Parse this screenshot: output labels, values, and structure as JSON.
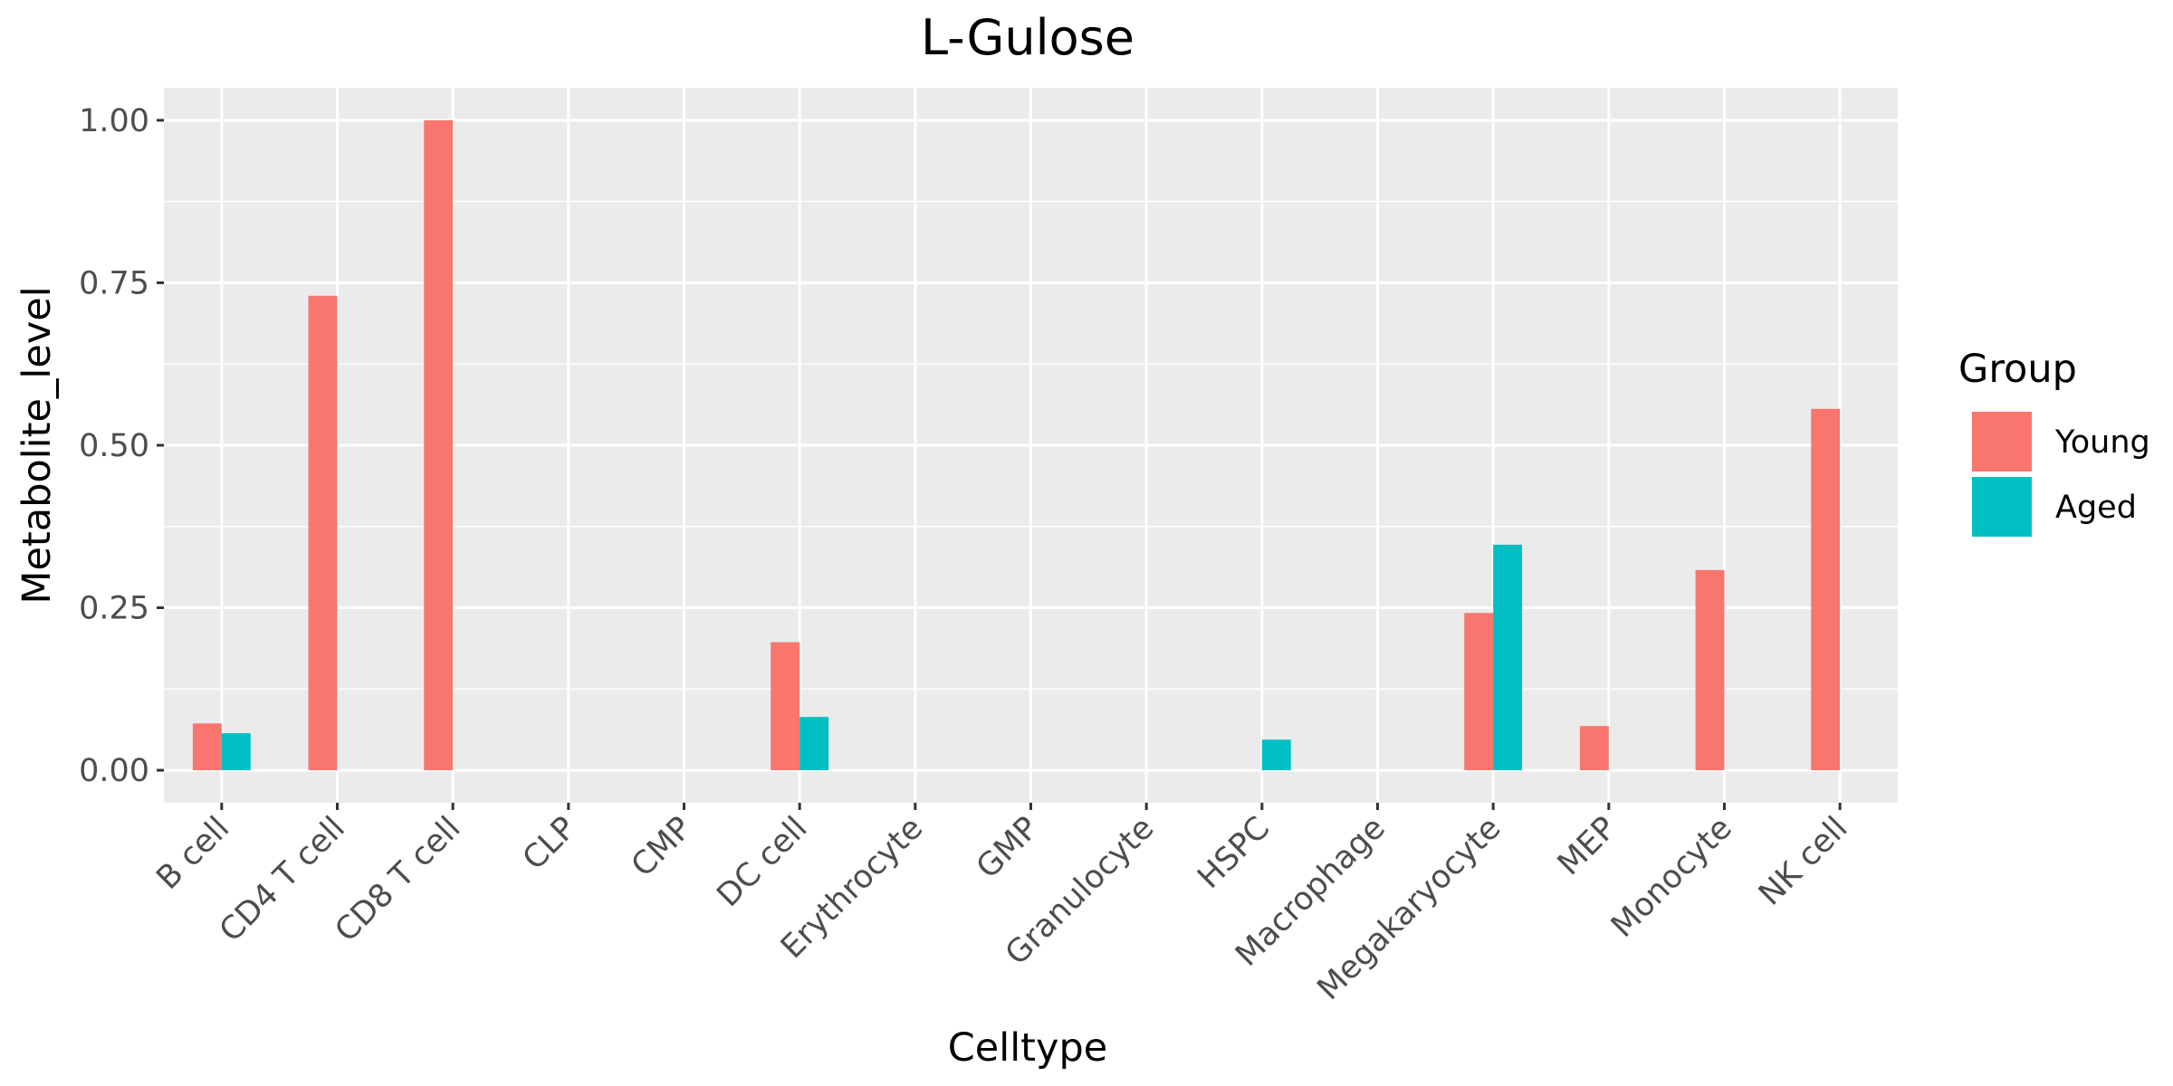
{
  "chart_data": {
    "type": "bar",
    "title": "L-Gulose",
    "xlabel": "Celltype",
    "ylabel": "Metabolite_level",
    "ylim": [
      -0.05,
      1.05
    ],
    "yticks": [
      0.0,
      0.25,
      0.5,
      0.75,
      1.0
    ],
    "ytick_labels": [
      "0.00",
      "0.25",
      "0.50",
      "0.75",
      "1.00"
    ],
    "grid": true,
    "legend_position": "right",
    "legend_title": "Group",
    "categories": [
      "B cell",
      "CD4 T cell",
      "CD8 T cell",
      "CLP",
      "CMP",
      "DC cell",
      "Erythrocyte",
      "GMP",
      "Granulocyte",
      "HSPC",
      "Macrophage",
      "Megakaryocyte",
      "MEP",
      "Monocyte",
      "NK cell"
    ],
    "series": [
      {
        "name": "Young",
        "color": "#F8766D",
        "values": [
          0.072,
          0.73,
          1.0,
          null,
          null,
          0.197,
          null,
          null,
          null,
          null,
          null,
          0.242,
          0.068,
          0.308,
          0.556
        ]
      },
      {
        "name": "Aged",
        "color": "#00BFC4",
        "values": [
          0.057,
          null,
          null,
          null,
          null,
          0.082,
          null,
          null,
          null,
          0.047,
          null,
          0.347,
          null,
          null,
          null
        ]
      }
    ]
  }
}
